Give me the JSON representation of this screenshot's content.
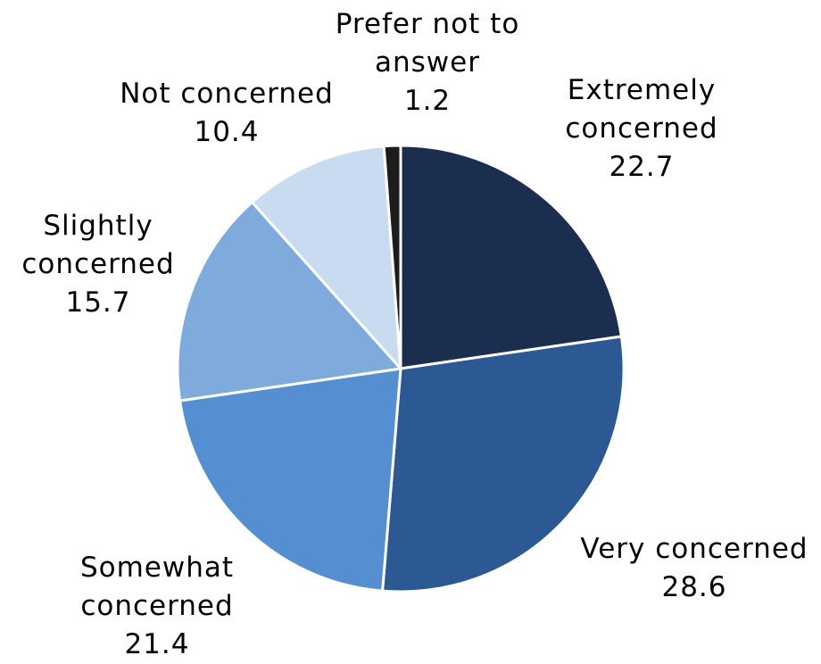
{
  "chart_data": {
    "type": "pie",
    "title": "",
    "start_angle_deg": 0,
    "direction": "clockwise",
    "slices": [
      {
        "name": "Extremely concerned",
        "label_lines": [
          "Extremely",
          "concerned"
        ],
        "value": 22.7,
        "value_label": "22.7",
        "color": "#1b2e4f"
      },
      {
        "name": "Very concerned",
        "label_lines": [
          "Very concerned"
        ],
        "value": 28.6,
        "value_label": "28.6",
        "color": "#2c5894"
      },
      {
        "name": "Somewhat concerned",
        "label_lines": [
          "Somewhat",
          "concerned"
        ],
        "value": 21.4,
        "value_label": "21.4",
        "color": "#558ed1"
      },
      {
        "name": "Slightly concerned",
        "label_lines": [
          "Slightly",
          "concerned"
        ],
        "value": 15.7,
        "value_label": "15.7",
        "color": "#7fabdc"
      },
      {
        "name": "Not concerned",
        "label_lines": [
          "Not concerned"
        ],
        "value": 10.4,
        "value_label": "10.4",
        "color": "#c9dbf0"
      },
      {
        "name": "Prefer not to answer",
        "label_lines": [
          "Prefer not to",
          "answer"
        ],
        "value": 1.2,
        "value_label": "1.2",
        "color": "#1c1c1c"
      }
    ],
    "slice_border_color": "#ffffff"
  }
}
